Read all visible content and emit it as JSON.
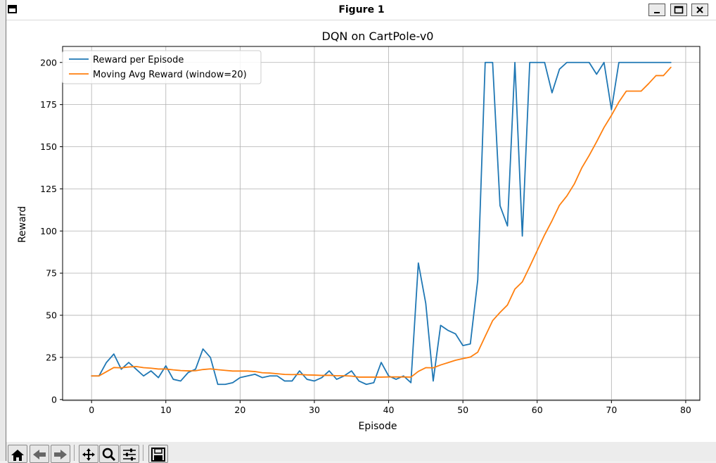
{
  "window": {
    "title": "Figure 1"
  },
  "window_controls": {
    "minimize": "minimize",
    "maximize": "maximize",
    "close": "close"
  },
  "toolbar": {
    "buttons": [
      "home-icon",
      "back-icon",
      "forward-icon",
      "pan-icon",
      "zoom-icon",
      "configure-icon",
      "save-icon"
    ]
  },
  "colors": {
    "series_reward": "#1f77b4",
    "series_avg": "#ff7f0e",
    "grid": "#b0b0b0"
  },
  "chart_data": {
    "type": "line",
    "title": "DQN on CartPole-v0",
    "xlabel": "Episode",
    "ylabel": "Reward",
    "xlim": [
      -3.9,
      81.9
    ],
    "ylim": [
      -0.5,
      209.5
    ],
    "xticks": [
      0,
      10,
      20,
      30,
      40,
      50,
      60,
      70,
      80
    ],
    "yticks": [
      0,
      25,
      50,
      75,
      100,
      125,
      150,
      175,
      200
    ],
    "xtick_labels": [
      "0",
      "10",
      "20",
      "30",
      "40",
      "50",
      "60",
      "70",
      "80"
    ],
    "ytick_labels": [
      "0",
      "25",
      "50",
      "75",
      "100",
      "125",
      "150",
      "175",
      "200"
    ],
    "grid": true,
    "legend_position": "top-left",
    "series": [
      {
        "name": "Reward per Episode",
        "color": "#1f77b4",
        "values": [
          14,
          14,
          22,
          27,
          18,
          22,
          18,
          14,
          17,
          13,
          20,
          12,
          11,
          16,
          18,
          30,
          25,
          9,
          9,
          10,
          13,
          14,
          15,
          13,
          14,
          14,
          11,
          11,
          17,
          12,
          11,
          13,
          17,
          12,
          14,
          17,
          11,
          9,
          10,
          22,
          14,
          12,
          14,
          10,
          81,
          57,
          11,
          44,
          41,
          39,
          32,
          33,
          71,
          200,
          200,
          115,
          103,
          200,
          97,
          200,
          200,
          200,
          182,
          196,
          200,
          200,
          200,
          200,
          193,
          200,
          172,
          200,
          200,
          200,
          200,
          200,
          200,
          200,
          200
        ]
      },
      {
        "name": "Moving Avg Reward (window=20)",
        "color": "#ff7f0e",
        "values": [
          14,
          14,
          16.5,
          19,
          18.8,
          19.3,
          19.6,
          18.9,
          18.6,
          18.1,
          18.1,
          17.6,
          17.2,
          17.0,
          17.1,
          17.8,
          18.2,
          17.7,
          17.3,
          16.9,
          16.9,
          16.9,
          16.6,
          15.9,
          15.7,
          15.3,
          14.9,
          14.8,
          14.9,
          14.6,
          14.5,
          14.3,
          14.4,
          14.1,
          14.1,
          13.9,
          13.3,
          13.3,
          13.3,
          13.3,
          13.4,
          13.4,
          13.4,
          13.3,
          16.7,
          18.9,
          18.8,
          20.5,
          21.9,
          23.3,
          24.3,
          25.2,
          28.1,
          37.5,
          46.8,
          51.7,
          56.1,
          65.5,
          69.8,
          78.9,
          88.3,
          97.7,
          106.1,
          115.3,
          120.8,
          127.9,
          137.4,
          144.8,
          152.9,
          161.4,
          168.6,
          176.5,
          183.0,
          183.0,
          183.0,
          187.4,
          192.2,
          192.2,
          197.1
        ]
      }
    ]
  }
}
